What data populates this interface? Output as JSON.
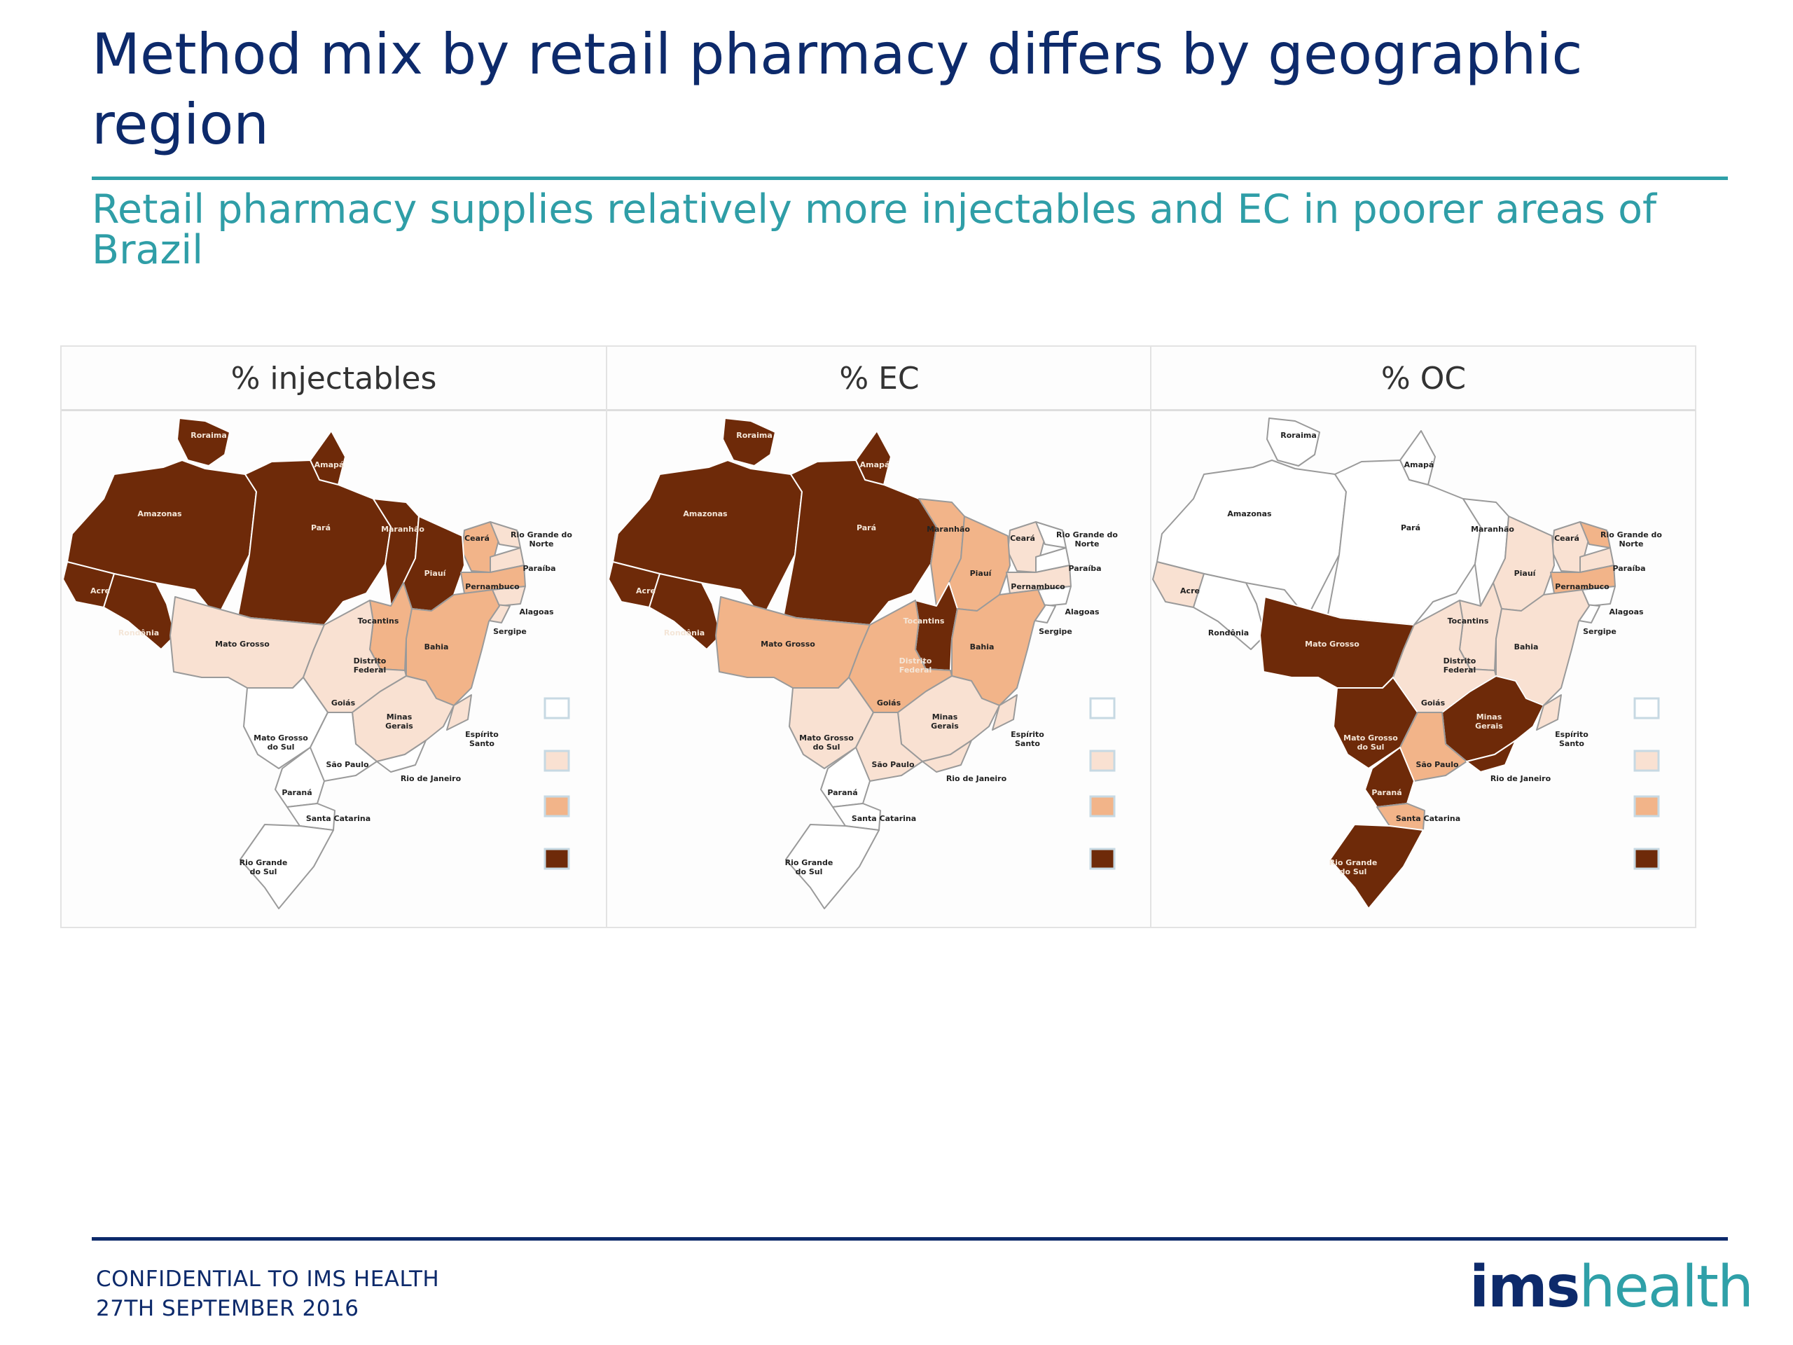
{
  "slide": {
    "title": "Method mix by retail pharmacy differs by geographic region",
    "subtitle": "Retail pharmacy supplies relatively more injectables and EC in poorer areas of Brazil"
  },
  "colors": {
    "title": "#0d2a6b",
    "accent": "#2fa0a8",
    "shade_scale": [
      "#ffffff",
      "#f9e1d2",
      "#f2b489",
      "#6e2a09"
    ]
  },
  "regions": [
    "Roraima",
    "Amapá",
    "Amazonas",
    "Pará",
    "Maranhão",
    "Ceará",
    "Rio Grande do Norte",
    "Paraíba",
    "Piauí",
    "Pernambuco",
    "Alagoas",
    "Sergipe",
    "Acre",
    "Rondônia",
    "Tocantins",
    "Bahia",
    "Mato Grosso",
    "Distrito Federal",
    "Goiás",
    "Minas Gerais",
    "Espírito Santo",
    "Mato Grosso do Sul",
    "São Paulo",
    "Rio de Janeiro",
    "Paraná",
    "Santa Catarina",
    "Rio Grande do Sul"
  ],
  "maps": [
    {
      "heading": "% injectables",
      "shading": {
        "Roraima": 3,
        "Amapá": 3,
        "Amazonas": 3,
        "Pará": 3,
        "Maranhão": 3,
        "Ceará": 2,
        "Rio Grande do Norte": 1,
        "Paraíba": 1,
        "Piauí": 3,
        "Pernambuco": 2,
        "Alagoas": 1,
        "Sergipe": 1,
        "Acre": 3,
        "Rondônia": 3,
        "Tocantins": 2,
        "Bahia": 2,
        "Mato Grosso": 1,
        "Distrito Federal": 1,
        "Goiás": 1,
        "Minas Gerais": 1,
        "Espírito Santo": 1,
        "Mato Grosso do Sul": 0,
        "São Paulo": 0,
        "Rio de Janeiro": 0,
        "Paraná": 0,
        "Santa Catarina": 0,
        "Rio Grande do Sul": 0
      }
    },
    {
      "heading": "% EC",
      "shading": {
        "Roraima": 3,
        "Amapá": 3,
        "Amazonas": 3,
        "Pará": 3,
        "Maranhão": 2,
        "Ceará": 1,
        "Rio Grande do Norte": 0,
        "Paraíba": 0,
        "Piauí": 2,
        "Pernambuco": 1,
        "Alagoas": 0,
        "Sergipe": 0,
        "Acre": 3,
        "Rondônia": 3,
        "Tocantins": 3,
        "Bahia": 2,
        "Mato Grosso": 2,
        "Distrito Federal": 3,
        "Goiás": 2,
        "Minas Gerais": 1,
        "Espírito Santo": 1,
        "Mato Grosso do Sul": 1,
        "São Paulo": 1,
        "Rio de Janeiro": 1,
        "Paraná": 0,
        "Santa Catarina": 0,
        "Rio Grande do Sul": 0
      }
    },
    {
      "heading": "% OC",
      "shading": {
        "Roraima": 0,
        "Amapá": 0,
        "Amazonas": 0,
        "Pará": 0,
        "Maranhão": 0,
        "Ceará": 1,
        "Rio Grande do Norte": 2,
        "Paraíba": 1,
        "Piauí": 1,
        "Pernambuco": 2,
        "Alagoas": 0,
        "Sergipe": 0,
        "Acre": 1,
        "Rondônia": 0,
        "Tocantins": 1,
        "Bahia": 1,
        "Mato Grosso": 3,
        "Distrito Federal": 1,
        "Goiás": 1,
        "Minas Gerais": 3,
        "Espírito Santo": 1,
        "Mato Grosso do Sul": 3,
        "São Paulo": 2,
        "Rio de Janeiro": 3,
        "Paraná": 3,
        "Santa Catarina": 2,
        "Rio Grande do Sul": 3
      }
    }
  ],
  "footer": {
    "line1": "CONFIDENTIAL TO IMS HEALTH",
    "line2": "27TH SEPTEMBER 2016"
  },
  "logo": {
    "bold": "ims",
    "light": "health"
  }
}
